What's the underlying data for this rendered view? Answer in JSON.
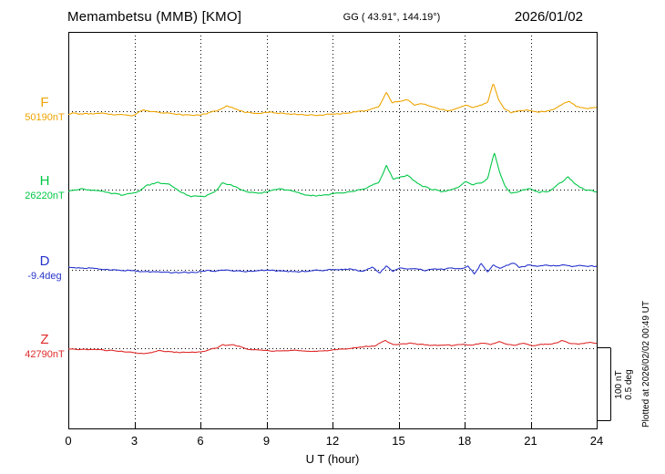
{
  "header": {
    "station_title": "Memambetsu (MMB)  [KMO]",
    "coordinates": "GG ( 43.91°, 144.19°)",
    "date": "2026/01/02"
  },
  "scale_bar": {
    "line1": "100 nT",
    "line2": "0.5 deg"
  },
  "plotted_at": "Plotted at 2026/02/02 00:49 UT",
  "chart_data": {
    "type": "line",
    "title": "Memambetsu (MMB) [KMO] magnetogram 2026/01/02",
    "x_label": "U T (hour)",
    "x_range": [
      0,
      24
    ],
    "x_ticks": [
      0,
      3,
      6,
      9,
      12,
      15,
      18,
      21,
      24
    ],
    "grid": "dotted vertical lines at 3-hour ticks, dotted baseline per channel",
    "legend_position": "left-margin channel labels",
    "series": [
      {
        "name": "F",
        "value_label": "50190nT",
        "unit": "nT",
        "color": "#efa400",
        "baseline_value": 50190,
        "scale_bar_units": 100,
        "noise_amp": 1.1,
        "keypoints": [
          [
            0,
            -3
          ],
          [
            0.8,
            -3.5
          ],
          [
            1.6,
            -3
          ],
          [
            2.3,
            -5
          ],
          [
            2.9,
            -6
          ],
          [
            3.4,
            1
          ],
          [
            3.9,
            -1
          ],
          [
            4.5,
            -2.5
          ],
          [
            5.1,
            -5
          ],
          [
            5.7,
            -5.5
          ],
          [
            6.3,
            -3
          ],
          [
            6.9,
            3
          ],
          [
            7.2,
            8
          ],
          [
            7.7,
            1
          ],
          [
            8.4,
            -3
          ],
          [
            9.2,
            -2
          ],
          [
            10,
            -4
          ],
          [
            10.8,
            -5
          ],
          [
            11.3,
            -6
          ],
          [
            12,
            -3.5
          ],
          [
            12.8,
            -2
          ],
          [
            13.6,
            1
          ],
          [
            14.1,
            6
          ],
          [
            14.45,
            26
          ],
          [
            14.7,
            12
          ],
          [
            15,
            14
          ],
          [
            15.35,
            16
          ],
          [
            15.7,
            9
          ],
          [
            16.1,
            11
          ],
          [
            16.5,
            6
          ],
          [
            16.9,
            3
          ],
          [
            17.3,
            1
          ],
          [
            17.7,
            4
          ],
          [
            18.05,
            9
          ],
          [
            18.4,
            6
          ],
          [
            18.75,
            8
          ],
          [
            19.05,
            13
          ],
          [
            19.3,
            38
          ],
          [
            19.55,
            16
          ],
          [
            19.8,
            4
          ],
          [
            20.1,
            -2
          ],
          [
            20.5,
            1
          ],
          [
            20.9,
            2
          ],
          [
            21.3,
            -1
          ],
          [
            21.7,
            0
          ],
          [
            22.1,
            3
          ],
          [
            22.5,
            10
          ],
          [
            22.75,
            14
          ],
          [
            23.1,
            6
          ],
          [
            23.5,
            3
          ],
          [
            24,
            5
          ]
        ]
      },
      {
        "name": "H",
        "value_label": "26220nT",
        "unit": "nT",
        "color": "#00c846",
        "baseline_value": 26220,
        "scale_bar_units": 100,
        "noise_amp": 1.3,
        "keypoints": [
          [
            0,
            -2
          ],
          [
            0.6,
            1
          ],
          [
            1.2,
            -1
          ],
          [
            1.9,
            -5
          ],
          [
            2.5,
            -7
          ],
          [
            3.1,
            -4
          ],
          [
            3.6,
            6
          ],
          [
            4.1,
            10
          ],
          [
            4.6,
            6
          ],
          [
            5.1,
            -4
          ],
          [
            5.6,
            -9
          ],
          [
            6.1,
            -10
          ],
          [
            6.6,
            -4
          ],
          [
            7,
            9
          ],
          [
            7.4,
            7
          ],
          [
            7.9,
            -1
          ],
          [
            8.5,
            -5
          ],
          [
            9.1,
            -3
          ],
          [
            9.6,
            2
          ],
          [
            10.2,
            -3
          ],
          [
            10.8,
            -7
          ],
          [
            11.3,
            -9
          ],
          [
            11.9,
            -6
          ],
          [
            12.5,
            -5
          ],
          [
            13.1,
            -1
          ],
          [
            13.7,
            4
          ],
          [
            14.1,
            10
          ],
          [
            14.45,
            33
          ],
          [
            14.75,
            14
          ],
          [
            15.05,
            17
          ],
          [
            15.4,
            19
          ],
          [
            15.75,
            10
          ],
          [
            16.1,
            5
          ],
          [
            16.5,
            1
          ],
          [
            16.9,
            -3
          ],
          [
            17.3,
            -1
          ],
          [
            17.7,
            3
          ],
          [
            18.05,
            11
          ],
          [
            18.4,
            7
          ],
          [
            18.75,
            9
          ],
          [
            19.05,
            16
          ],
          [
            19.35,
            50
          ],
          [
            19.6,
            22
          ],
          [
            19.85,
            4
          ],
          [
            20.15,
            -5
          ],
          [
            20.5,
            -2
          ],
          [
            20.9,
            1
          ],
          [
            21.4,
            -4
          ],
          [
            21.9,
            -1
          ],
          [
            22.3,
            8
          ],
          [
            22.7,
            18
          ],
          [
            23.05,
            6
          ],
          [
            23.5,
            -1
          ],
          [
            24,
            -3
          ]
        ]
      },
      {
        "name": "D",
        "value_label": "-9.4deg",
        "unit": "deg",
        "color": "#2633cc",
        "baseline_value": -9.4,
        "scale_bar_units": 0.5,
        "noise_amp": 0.006,
        "keypoints": [
          [
            0,
            0.022
          ],
          [
            0.7,
            0.012
          ],
          [
            1.5,
            0.004
          ],
          [
            2.3,
            -0.003
          ],
          [
            3.1,
            -0.01
          ],
          [
            4,
            -0.018
          ],
          [
            4.8,
            -0.02
          ],
          [
            5.6,
            -0.015
          ],
          [
            6.4,
            -0.008
          ],
          [
            7.2,
            -0.002
          ],
          [
            8,
            -0.01
          ],
          [
            8.8,
            -0.004
          ],
          [
            9.6,
            -0.008
          ],
          [
            10.4,
            -0.012
          ],
          [
            11.2,
            -0.006
          ],
          [
            12,
            -0.002
          ],
          [
            12.8,
            0.006
          ],
          [
            13.4,
            -0.008
          ],
          [
            13.8,
            0.018
          ],
          [
            14.15,
            -0.025
          ],
          [
            14.45,
            0.03
          ],
          [
            14.75,
            -0.015
          ],
          [
            15.05,
            0.012
          ],
          [
            15.4,
            0.002
          ],
          [
            15.8,
            0.01
          ],
          [
            16.2,
            -0.006
          ],
          [
            16.6,
            0.008
          ],
          [
            17,
            0.002
          ],
          [
            17.4,
            0.012
          ],
          [
            17.8,
            0.004
          ],
          [
            18.15,
            0.022
          ],
          [
            18.45,
            -0.028
          ],
          [
            18.75,
            0.04
          ],
          [
            19.05,
            -0.015
          ],
          [
            19.3,
            0.035
          ],
          [
            19.6,
            0.008
          ],
          [
            19.9,
            0.03
          ],
          [
            20.2,
            0.045
          ],
          [
            20.5,
            0.018
          ],
          [
            20.85,
            0.032
          ],
          [
            21.2,
            0.022
          ],
          [
            21.6,
            0.03
          ],
          [
            22,
            0.024
          ],
          [
            22.4,
            0.032
          ],
          [
            22.8,
            0.022
          ],
          [
            23.2,
            0.03
          ],
          [
            23.6,
            0.022
          ],
          [
            24,
            0.026
          ]
        ]
      },
      {
        "name": "Z",
        "value_label": "42790nT",
        "unit": "nT",
        "color": "#e02a2a",
        "baseline_value": 42790,
        "scale_bar_units": 100,
        "noise_amp": 0.9,
        "keypoints": [
          [
            0,
            -1
          ],
          [
            0.8,
            -2
          ],
          [
            1.6,
            -2.5
          ],
          [
            2.4,
            -4
          ],
          [
            3,
            -6.5
          ],
          [
            3.5,
            -7
          ],
          [
            4.1,
            -3.5
          ],
          [
            4.7,
            -4.5
          ],
          [
            5.3,
            -6
          ],
          [
            5.9,
            -5
          ],
          [
            6.5,
            -2
          ],
          [
            7,
            4
          ],
          [
            7.5,
            4.5
          ],
          [
            8.1,
            -1
          ],
          [
            8.8,
            -3
          ],
          [
            9.6,
            -3.5
          ],
          [
            10.4,
            -3
          ],
          [
            11.1,
            -4
          ],
          [
            11.8,
            -3
          ],
          [
            12.5,
            -1
          ],
          [
            13.2,
            1
          ],
          [
            13.9,
            3
          ],
          [
            14.4,
            11
          ],
          [
            14.75,
            4
          ],
          [
            15.1,
            6
          ],
          [
            15.5,
            6.5
          ],
          [
            15.9,
            5
          ],
          [
            16.4,
            4
          ],
          [
            16.9,
            3.5
          ],
          [
            17.4,
            4
          ],
          [
            17.9,
            5.5
          ],
          [
            18.3,
            3.5
          ],
          [
            18.8,
            7
          ],
          [
            19.2,
            5
          ],
          [
            19.55,
            9
          ],
          [
            19.9,
            6
          ],
          [
            20.3,
            4
          ],
          [
            20.7,
            6.5
          ],
          [
            21.1,
            3.5
          ],
          [
            21.6,
            5
          ],
          [
            22,
            6
          ],
          [
            22.4,
            10
          ],
          [
            22.8,
            6.5
          ],
          [
            23.2,
            5.5
          ],
          [
            23.6,
            8
          ],
          [
            24,
            6
          ]
        ]
      }
    ]
  }
}
